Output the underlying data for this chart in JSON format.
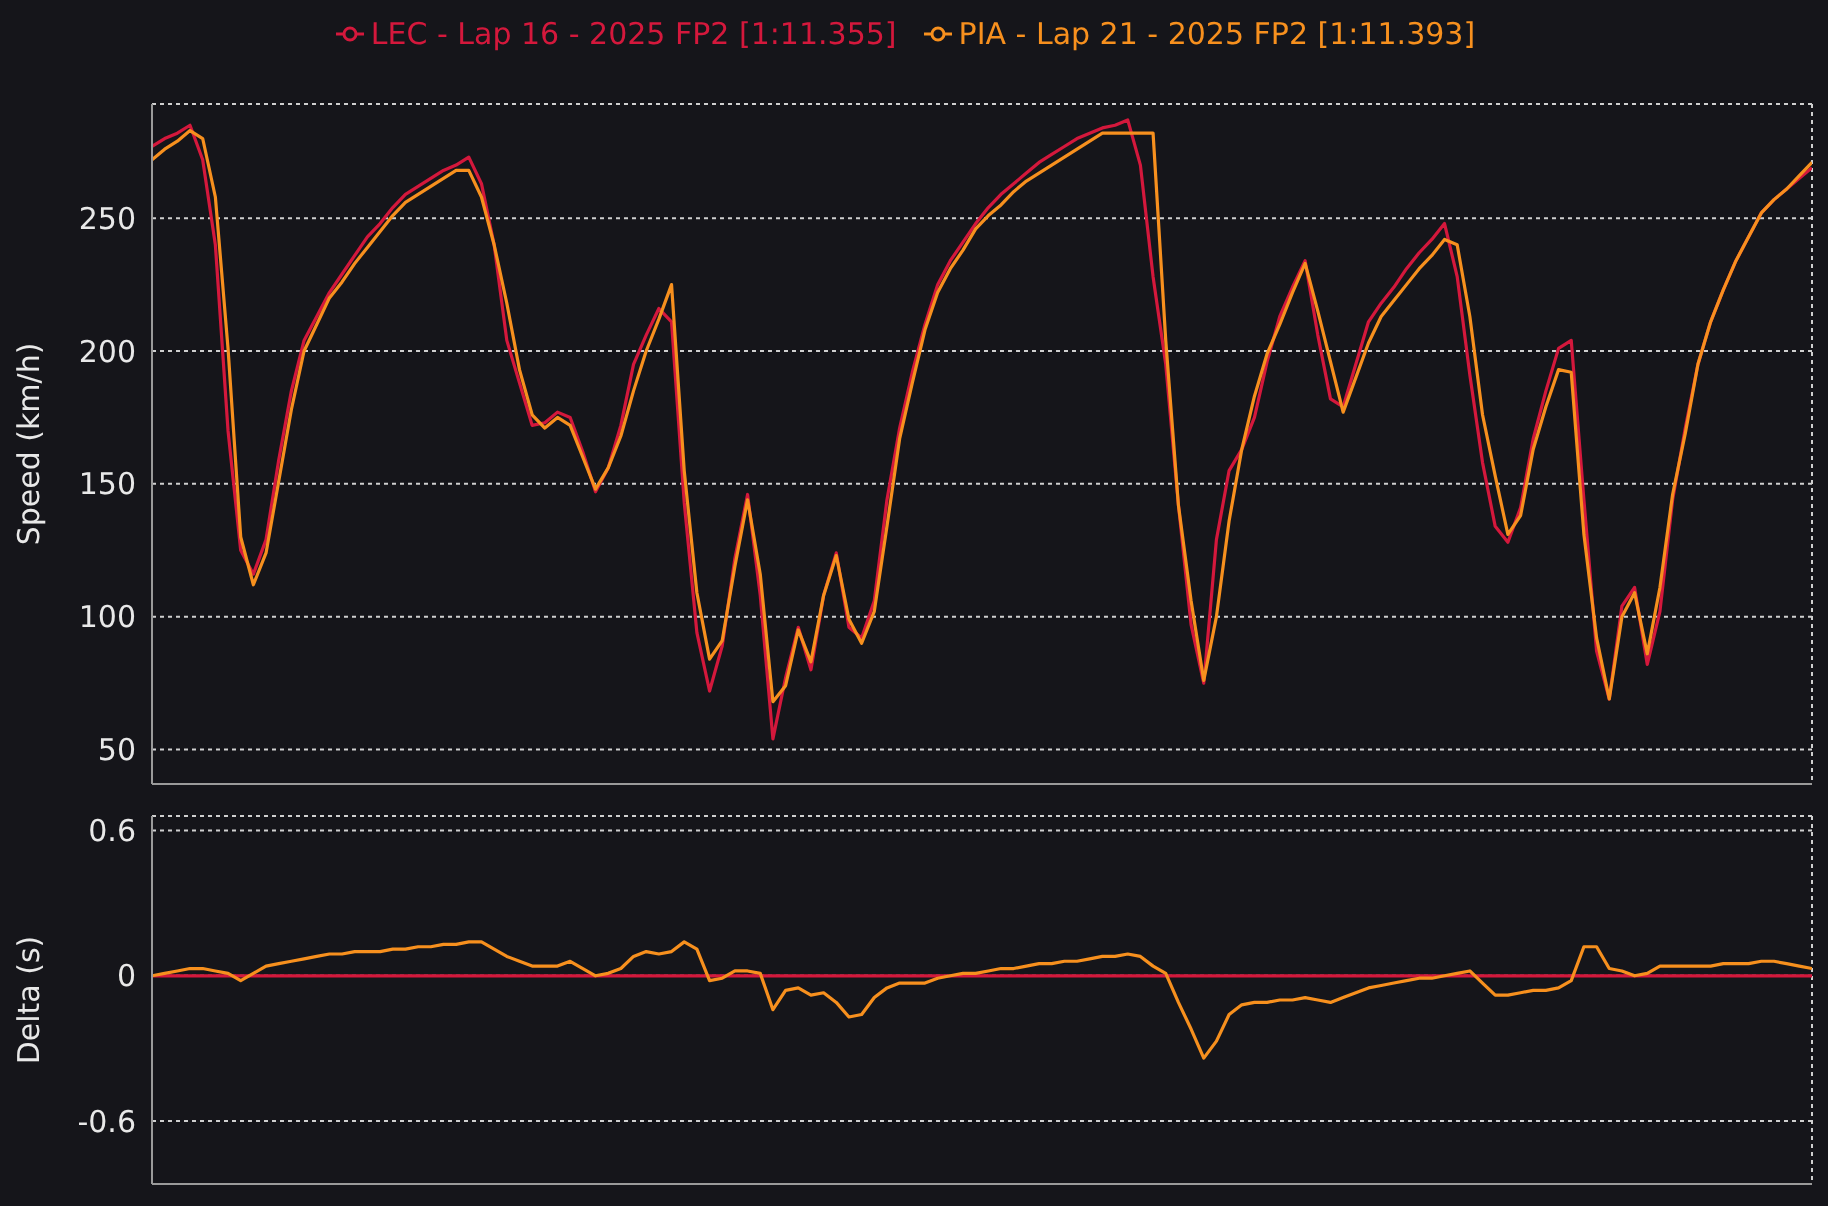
{
  "chart_data": [
    {
      "type": "line",
      "ylabel": "Speed (km/h)",
      "categories": [
        null,
        null,
        null,
        null,
        null,
        null,
        null,
        null,
        null,
        null,
        null,
        null,
        null,
        null,
        null,
        null,
        null,
        null,
        null,
        null,
        null,
        null,
        null,
        null,
        null,
        null,
        null,
        null,
        null,
        null,
        null,
        null,
        null,
        null,
        null,
        null,
        null,
        null,
        null,
        null,
        null,
        null,
        null,
        null,
        null,
        null,
        null,
        null,
        null,
        null,
        null,
        null,
        null,
        null,
        null,
        null,
        null,
        null,
        null,
        null,
        null,
        null,
        null,
        null,
        null,
        null,
        null,
        null,
        null,
        null,
        null,
        null,
        null,
        null,
        null,
        null,
        null,
        null,
        null,
        null,
        null,
        null,
        null,
        null,
        null,
        null,
        null,
        null,
        null,
        null,
        null,
        null,
        null,
        null,
        null,
        null,
        null,
        null,
        null,
        null,
        null,
        null,
        null,
        null,
        null,
        null,
        null,
        null,
        null,
        null,
        null,
        null,
        null,
        null,
        null,
        null,
        null,
        null,
        null,
        null,
        null,
        null,
        null,
        null,
        null,
        null,
        null,
        null,
        null,
        null,
        null,
        null
      ],
      "ylim": [
        37,
        293
      ],
      "yticks": [
        50,
        100,
        150,
        200,
        250
      ],
      "tick_labels": "y",
      "grid": true,
      "legend": "top",
      "line_style": "solid",
      "series": [
        {
          "name": "LEC - Lap 16 - 2025 FP2 [1:11.355]",
          "color": "#d4183c",
          "values": [
            277,
            280,
            282,
            285,
            272,
            240,
            170,
            125,
            116,
            129,
            159,
            185,
            204,
            213,
            222,
            229,
            236,
            243,
            248,
            254,
            259,
            262,
            265,
            268,
            270,
            273,
            263,
            240,
            204,
            188,
            172,
            173,
            177,
            175,
            162,
            147,
            156,
            172,
            195,
            206,
            216,
            211,
            143,
            94,
            72,
            89,
            122,
            146,
            108,
            54,
            77,
            96,
            80,
            108,
            124,
            96,
            92,
            106,
            144,
            171,
            192,
            210,
            225,
            234,
            241,
            248,
            254,
            259,
            263,
            267,
            271,
            274,
            277,
            280,
            282,
            284,
            285,
            287,
            270,
            228,
            195,
            142,
            97,
            75,
            129,
            155,
            163,
            175,
            196,
            213,
            224,
            234,
            206,
            182,
            179,
            195,
            211,
            218,
            224,
            231,
            237,
            242,
            248,
            228,
            191,
            158,
            134,
            128,
            141,
            167,
            185,
            201,
            204,
            144,
            87,
            69,
            104,
            111,
            82,
            102,
            144,
            171,
            195,
            211,
            223,
            234,
            243,
            252,
            257,
            261,
            265,
            269
          ]
        },
        {
          "name": "PIA - Lap 21 - 2025 FP2 [1:11.393]",
          "color": "#f7901e",
          "values": [
            272,
            276,
            279,
            283,
            280,
            258,
            201,
            130,
            112,
            124,
            151,
            178,
            200,
            210,
            220,
            226,
            233,
            239,
            245,
            251,
            256,
            259,
            262,
            265,
            268,
            268,
            258,
            240,
            218,
            193,
            176,
            171,
            175,
            172,
            160,
            148,
            156,
            168,
            185,
            200,
            212,
            225,
            155,
            109,
            84,
            91,
            119,
            144,
            116,
            68,
            74,
            95,
            83,
            108,
            123,
            99,
            90,
            102,
            134,
            167,
            188,
            208,
            222,
            231,
            238,
            246,
            251,
            255,
            260,
            264,
            267,
            270,
            273,
            276,
            279,
            282,
            282,
            282,
            282,
            282,
            204,
            142,
            106,
            76,
            100,
            136,
            163,
            183,
            199,
            210,
            222,
            233,
            215,
            196,
            177,
            190,
            203,
            213,
            219,
            225,
            231,
            236,
            242,
            240,
            213,
            176,
            153,
            131,
            138,
            163,
            179,
            193,
            192,
            131,
            92,
            69,
            100,
            109,
            86,
            111,
            146,
            169,
            195,
            211,
            223,
            234,
            243,
            252,
            257,
            261,
            266,
            271
          ]
        }
      ]
    },
    {
      "type": "line",
      "ylabel": "Delta (s)",
      "categories": [
        null,
        null,
        null,
        null,
        null,
        null,
        null,
        null,
        null,
        null,
        null,
        null,
        null,
        null,
        null,
        null,
        null,
        null,
        null,
        null,
        null,
        null,
        null,
        null,
        null,
        null,
        null,
        null,
        null,
        null,
        null,
        null,
        null,
        null,
        null,
        null,
        null,
        null,
        null,
        null,
        null,
        null,
        null,
        null,
        null,
        null,
        null,
        null,
        null,
        null,
        null,
        null,
        null,
        null,
        null,
        null,
        null,
        null,
        null,
        null,
        null,
        null,
        null,
        null,
        null,
        null,
        null,
        null,
        null,
        null,
        null,
        null,
        null,
        null,
        null,
        null,
        null,
        null,
        null,
        null,
        null,
        null,
        null,
        null,
        null,
        null,
        null,
        null,
        null,
        null,
        null,
        null,
        null,
        null,
        null,
        null,
        null,
        null,
        null,
        null,
        null,
        null,
        null,
        null,
        null,
        null,
        null,
        null,
        null,
        null,
        null,
        null,
        null,
        null,
        null,
        null,
        null,
        null,
        null,
        null,
        null,
        null,
        null,
        null,
        null,
        null,
        null,
        null,
        null,
        null,
        null,
        null
      ],
      "ylim": [
        -0.86,
        0.66
      ],
      "yticks": [
        -0.6,
        0,
        0.6
      ],
      "tick_labels": "y",
      "grid": true,
      "line_style": "solid",
      "series": [
        {
          "color": "#d4183c",
          "values": [
            0,
            0,
            0,
            0,
            0,
            0,
            0,
            0,
            0,
            0,
            0,
            0,
            0,
            0,
            0,
            0,
            0,
            0,
            0,
            0,
            0,
            0,
            0,
            0,
            0,
            0,
            0,
            0,
            0,
            0,
            0,
            0,
            0,
            0,
            0,
            0,
            0,
            0,
            0,
            0,
            0,
            0,
            0,
            0,
            0,
            0,
            0,
            0,
            0,
            0,
            0,
            0,
            0,
            0,
            0,
            0,
            0,
            0,
            0,
            0,
            0,
            0,
            0,
            0,
            0,
            0,
            0,
            0,
            0,
            0,
            0,
            0,
            0,
            0,
            0,
            0,
            0,
            0,
            0,
            0,
            0,
            0,
            0,
            0,
            0,
            0,
            0,
            0,
            0,
            0,
            0,
            0,
            0,
            0,
            0,
            0,
            0,
            0,
            0,
            0,
            0,
            0,
            0,
            0,
            0,
            0,
            0,
            0,
            0,
            0,
            0,
            0,
            0,
            0,
            0,
            0,
            0,
            0,
            0,
            0,
            0,
            0,
            0,
            0,
            0,
            0,
            0,
            0,
            0,
            0,
            0,
            0
          ]
        },
        {
          "color": "#f7901e",
          "values": [
            0,
            0.01,
            0.02,
            0.03,
            0.03,
            0.02,
            0.01,
            -0.02,
            0.01,
            0.04,
            0.05,
            0.06,
            0.07,
            0.08,
            0.09,
            0.09,
            0.1,
            0.1,
            0.1,
            0.11,
            0.11,
            0.12,
            0.12,
            0.13,
            0.13,
            0.14,
            0.14,
            0.11,
            0.08,
            0.06,
            0.04,
            0.04,
            0.04,
            0.06,
            0.03,
            0,
            0.01,
            0.03,
            0.08,
            0.1,
            0.09,
            0.1,
            0.14,
            0.11,
            -0.02,
            -0.01,
            0.02,
            0.02,
            0.01,
            -0.14,
            -0.06,
            -0.05,
            -0.08,
            -0.07,
            -0.11,
            -0.17,
            -0.16,
            -0.09,
            -0.05,
            -0.03,
            -0.03,
            -0.03,
            -0.01,
            0,
            0.01,
            0.01,
            0.02,
            0.03,
            0.03,
            0.04,
            0.05,
            0.05,
            0.06,
            0.06,
            0.07,
            0.08,
            0.08,
            0.09,
            0.08,
            0.04,
            0.01,
            -0.11,
            -0.22,
            -0.34,
            -0.27,
            -0.16,
            -0.12,
            -0.11,
            -0.11,
            -0.1,
            -0.1,
            -0.09,
            -0.1,
            -0.11,
            -0.09,
            -0.07,
            -0.05,
            -0.04,
            -0.03,
            -0.02,
            -0.01,
            -0.01,
            0,
            0.01,
            0.02,
            -0.03,
            -0.08,
            -0.08,
            -0.07,
            -0.06,
            -0.06,
            -0.05,
            -0.02,
            0.12,
            0.12,
            0.03,
            0.02,
            0,
            0.01,
            0.04,
            0.04,
            0.04,
            0.04,
            0.04,
            0.05,
            0.05,
            0.05,
            0.06,
            0.06,
            0.05,
            0.04,
            0.03
          ]
        }
      ]
    }
  ]
}
